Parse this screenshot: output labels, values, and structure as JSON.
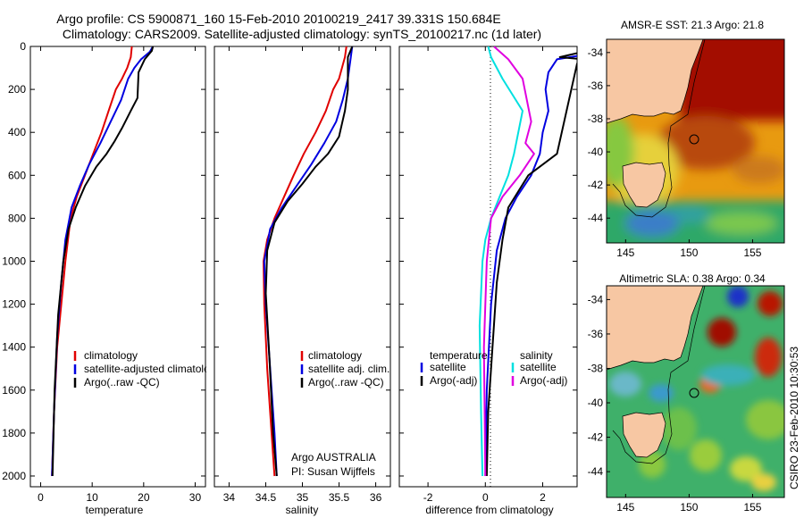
{
  "header": {
    "line1": "Argo profile: CS 5900871_160 15-Feb-2010 20100219_2417 39.331S 150.684E",
    "line2": "Climatology: CARS2009. Satellite-adjusted climatology: synTS_20100217.nc (1d later)"
  },
  "side_stamp": "CSIRO 23-Feb-2010 10:30:53",
  "colors": {
    "red": "#e00000",
    "blue": "#0000e0",
    "black": "#000000",
    "cyan": "#00e0e0",
    "magenta": "#e000e0"
  },
  "chart_data": [
    {
      "type": "line",
      "xlabel": "temperature",
      "ylabel": "",
      "xlim": [
        -2,
        32
      ],
      "ylim": [
        2050,
        0
      ],
      "xticks": [
        0,
        10,
        20,
        30
      ],
      "yticks": [
        0,
        200,
        400,
        600,
        800,
        1000,
        1200,
        1400,
        1600,
        1800,
        2000
      ],
      "legend": [
        "climatology",
        "satellite-adjusted climatology",
        "Argo(..raw -QC)"
      ],
      "series": [
        {
          "name": "climatology",
          "color": "red",
          "x": [
            17.7,
            17.5,
            16.8,
            15.8,
            14.6,
            13.2,
            11.8,
            10.2,
            8.6,
            7.0,
            5.8,
            4.8,
            4.0,
            3.2,
            2.6,
            2.2
          ],
          "y": [
            0,
            50,
            100,
            150,
            200,
            300,
            400,
            500,
            600,
            700,
            800,
            1000,
            1200,
            1400,
            1700,
            2000
          ]
        },
        {
          "name": "satellite-adjusted climatology",
          "color": "blue",
          "x": [
            21.8,
            21.2,
            19.5,
            18.2,
            17.0,
            15.6,
            13.6,
            11.6,
            9.4,
            7.6,
            6.0,
            4.8,
            4.0,
            3.2,
            2.6,
            2.2
          ],
          "y": [
            0,
            25,
            60,
            100,
            150,
            250,
            350,
            450,
            550,
            650,
            750,
            900,
            1100,
            1350,
            1700,
            2000
          ]
        },
        {
          "name": "Argo(..raw -QC)",
          "color": "black",
          "x": [
            21.8,
            21.6,
            20.2,
            19.0,
            18.8,
            17.5,
            15.8,
            14.4,
            12.8,
            10.8,
            8.6,
            6.8,
            5.4,
            4.4,
            3.4,
            2.7,
            2.3
          ],
          "y": [
            0,
            20,
            60,
            120,
            240,
            300,
            380,
            440,
            500,
            560,
            650,
            750,
            850,
            1000,
            1250,
            1600,
            2000
          ]
        }
      ]
    },
    {
      "type": "line",
      "xlabel": "salinity",
      "ylabel": "",
      "xlim": [
        33.8,
        36.2
      ],
      "ylim": [
        2050,
        0
      ],
      "xticks": [
        34,
        34.5,
        35,
        35.5,
        36
      ],
      "yticks": [
        0,
        200,
        400,
        600,
        800,
        1000,
        1200,
        1400,
        1600,
        1800,
        2000
      ],
      "legend": [
        "climatology",
        "satellite adj. clim.",
        "Argo(..raw -QC)"
      ],
      "annotation": [
        "Argo AUSTRALIA",
        "PI: Susan Wijffels"
      ],
      "series": [
        {
          "name": "climatology",
          "color": "red",
          "x": [
            35.6,
            35.58,
            35.5,
            35.42,
            35.32,
            35.18,
            35.02,
            34.88,
            34.75,
            34.62,
            34.52,
            34.47,
            34.48,
            34.52,
            34.58,
            34.62
          ],
          "y": [
            0,
            50,
            150,
            200,
            300,
            400,
            500,
            600,
            700,
            800,
            900,
            1000,
            1200,
            1500,
            1800,
            2000
          ]
        },
        {
          "name": "satellite adj. clim.",
          "color": "blue",
          "x": [
            35.68,
            35.66,
            35.62,
            35.55,
            35.46,
            35.3,
            35.12,
            34.92,
            34.72,
            34.56,
            34.48,
            34.5,
            34.56,
            34.62,
            34.65
          ],
          "y": [
            0,
            50,
            150,
            250,
            350,
            450,
            550,
            650,
            750,
            850,
            1000,
            1200,
            1500,
            1800,
            2000
          ]
        },
        {
          "name": "Argo(..raw -QC)",
          "color": "black",
          "x": [
            35.68,
            35.62,
            35.62,
            35.58,
            35.5,
            35.35,
            35.18,
            35.0,
            34.8,
            34.62,
            34.52,
            34.5,
            34.55,
            34.6,
            34.65
          ],
          "y": [
            0,
            50,
            200,
            300,
            420,
            500,
            560,
            640,
            720,
            820,
            950,
            1150,
            1450,
            1800,
            2000
          ]
        }
      ]
    },
    {
      "type": "line",
      "xlabel": "difference from climatology",
      "ylabel": "",
      "xlim": [
        -3,
        3.2
      ],
      "ylim": [
        2050,
        0
      ],
      "xticks": [
        -2,
        0,
        2
      ],
      "yticks": [
        0,
        200,
        400,
        600,
        800,
        1000,
        1200,
        1400,
        1600,
        1800,
        2000
      ],
      "legend_left": [
        "temperature",
        "satellite",
        "Argo(-adj)"
      ],
      "legend_right": [
        "salinity",
        "satellite",
        "Argo(-adj)"
      ],
      "series": [
        {
          "name": "temperature satellite",
          "color": "blue",
          "x": [
            4.2,
            3.4,
            2.5,
            2.2,
            2.1,
            2.2,
            2.0,
            1.9,
            1.6,
            1.1,
            0.7,
            0.4,
            0.2,
            0.05,
            0.0
          ],
          "y": [
            0,
            40,
            60,
            120,
            200,
            300,
            400,
            500,
            600,
            700,
            800,
            950,
            1200,
            1600,
            2000
          ]
        },
        {
          "name": "temperature Argo(-adj)",
          "color": "black",
          "x": [
            4.2,
            2.6,
            3.4,
            3.2,
            2.5,
            1.5,
            0.8,
            0.6,
            0.4,
            0.25,
            0.1,
            0.05
          ],
          "y": [
            0,
            50,
            60,
            80,
            500,
            600,
            750,
            900,
            1100,
            1400,
            1700,
            2000
          ]
        },
        {
          "name": "salinity satellite",
          "color": "cyan",
          "x": [
            0.1,
            0.2,
            0.6,
            1.3,
            1.0,
            0.8,
            0.5,
            0.2,
            0.0,
            -0.1,
            -0.2,
            -0.15,
            -0.1
          ],
          "y": [
            0,
            50,
            150,
            300,
            500,
            600,
            700,
            800,
            900,
            1000,
            1300,
            1700,
            2000
          ]
        },
        {
          "name": "salinity Argo(-adj)",
          "color": "magenta",
          "x": [
            0.3,
            0.8,
            1.3,
            1.6,
            1.4,
            1.7,
            1.2,
            0.6,
            0.2,
            0.05,
            -0.05,
            0.0
          ],
          "y": [
            0,
            60,
            150,
            350,
            450,
            500,
            600,
            700,
            800,
            1000,
            1400,
            2000
          ]
        }
      ]
    },
    {
      "type": "heatmap",
      "title": "AMSR-E SST: 21.3 Argo: 21.8",
      "xticks": [
        145,
        150,
        155
      ],
      "yticks": [
        -34,
        -36,
        -38,
        -40,
        -42,
        -44
      ],
      "xlim": [
        143.5,
        157.5
      ],
      "ylim": [
        -45.5,
        -33.2
      ],
      "argo_position": {
        "lon": 150.684,
        "lat": -39.331
      }
    },
    {
      "type": "heatmap",
      "title": "Altimetric SLA: 0.38 Argo: 0.34",
      "xticks": [
        145,
        150,
        155
      ],
      "yticks": [
        -34,
        -36,
        -38,
        -40,
        -42,
        -44
      ],
      "xlim": [
        143.5,
        157.5
      ],
      "ylim": [
        -45.5,
        -33.2
      ],
      "argo_position": {
        "lon": 150.684,
        "lat": -39.331
      }
    }
  ]
}
